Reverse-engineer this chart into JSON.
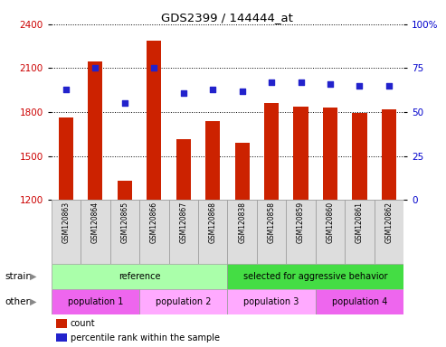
{
  "title": "GDS2399 / 144444_at",
  "samples": [
    "GSM120863",
    "GSM120864",
    "GSM120865",
    "GSM120866",
    "GSM120867",
    "GSM120868",
    "GSM120838",
    "GSM120858",
    "GSM120859",
    "GSM120860",
    "GSM120861",
    "GSM120862"
  ],
  "counts": [
    1762,
    2148,
    1330,
    2290,
    1612,
    1740,
    1590,
    1863,
    1840,
    1830,
    1795,
    1820
  ],
  "percentiles": [
    63,
    75,
    55,
    75,
    61,
    63,
    62,
    67,
    67,
    66,
    65,
    65
  ],
  "ylim_left": [
    1200,
    2400
  ],
  "ylim_right": [
    0,
    100
  ],
  "yticks_left": [
    1200,
    1500,
    1800,
    2100,
    2400
  ],
  "yticks_right": [
    0,
    25,
    50,
    75,
    100
  ],
  "bar_color": "#CC2200",
  "dot_color": "#2222CC",
  "bar_width": 0.5,
  "strain_groups": [
    {
      "label": "reference",
      "start": 0,
      "end": 6,
      "color": "#AAFFAA"
    },
    {
      "label": "selected for aggressive behavior",
      "start": 6,
      "end": 12,
      "color": "#44DD44"
    }
  ],
  "other_groups": [
    {
      "label": "population 1",
      "start": 0,
      "end": 3,
      "color": "#EE66EE"
    },
    {
      "label": "population 2",
      "start": 3,
      "end": 6,
      "color": "#FFAAFF"
    },
    {
      "label": "population 3",
      "start": 6,
      "end": 9,
      "color": "#FFAAFF"
    },
    {
      "label": "population 4",
      "start": 9,
      "end": 12,
      "color": "#EE66EE"
    }
  ],
  "strain_label": "strain",
  "other_label": "other",
  "legend_count_label": "count",
  "legend_pct_label": "percentile rank within the sample",
  "axis_left_color": "#CC0000",
  "axis_right_color": "#0000CC",
  "background_color": "#FFFFFF",
  "plot_bg_color": "#FFFFFF",
  "box_color": "#DDDDDD",
  "box_edge_color": "#999999"
}
